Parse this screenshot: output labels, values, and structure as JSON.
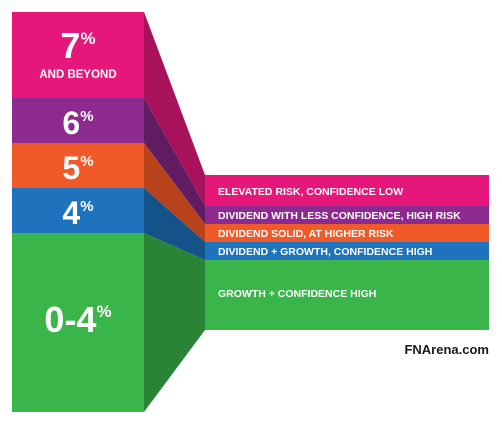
{
  "tiers": [
    {
      "id": "seven",
      "value": "7",
      "unit": "%",
      "sub": "AND BEYOND",
      "label": "ELEVATED RISK, CONFIDENCE LOW",
      "color": "#e6177b"
    },
    {
      "id": "six",
      "value": "6",
      "unit": "%",
      "sub": "",
      "label": "DIVIDEND WITH LESS CONFIDENCE, HIGH RISK",
      "color": "#8c2a8f"
    },
    {
      "id": "five",
      "value": "5",
      "unit": "%",
      "sub": "",
      "label": "DIVIDEND SOLID, AT HIGHER RISK",
      "color": "#ef5a28"
    },
    {
      "id": "four",
      "value": "4",
      "unit": "%",
      "sub": "",
      "label": "DIVIDEND + GROWTH, CONFIDENCE HIGH",
      "color": "#1f73bd"
    },
    {
      "id": "zero-four",
      "value": "0-4",
      "unit": "%",
      "sub": "",
      "label": "GROWTH + CONFIDENCE HIGH",
      "color": "#3ab54a"
    }
  ],
  "credit": "FNArena.com"
}
